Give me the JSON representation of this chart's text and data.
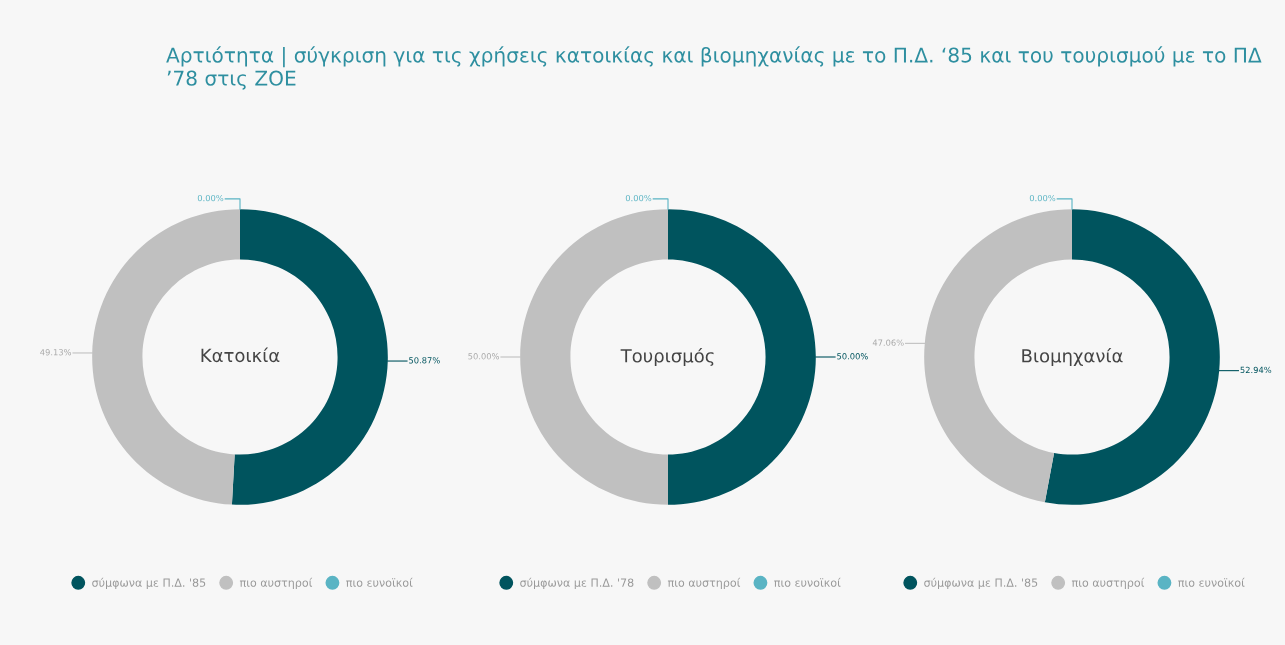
{
  "chart_data": [
    {
      "type": "donut",
      "title": "Αρτιότητα | σύγκριση για τις χρήσεις κατοικίας και βιομηχανίας με το Π.Δ. ‘85 και του τουρισμού με το ΠΔ ’78 στις ΖΟΕ",
      "annotations": [
        "Κατοικία"
      ],
      "categories": [
        "σύμφωνα με Π.Δ. '85",
        "πιο αυστηροί",
        "πιο ευνοϊκοί"
      ],
      "values": [
        50.87,
        49.13,
        0
      ],
      "value_labels": [
        "50.87%",
        "49.13%",
        "0.00%"
      ],
      "colors": [
        "#00545e",
        "#c0c0c0",
        "#5ab4c4"
      ],
      "legend": "bottom"
    },
    {
      "type": "donut",
      "annotations": [
        "Τουρισμός"
      ],
      "categories": [
        "σύμφωνα με Π.Δ. '78",
        "πιο αυστηροί",
        "πιο ευνοϊκοί"
      ],
      "values": [
        50.0,
        50.0,
        0
      ],
      "value_labels": [
        "50.00%",
        "50.00%",
        "0.00%"
      ],
      "colors": [
        "#00545e",
        "#c0c0c0",
        "#5ab4c4"
      ],
      "legend": "bottom"
    },
    {
      "type": "donut",
      "annotations": [
        "Βιομηχανία"
      ],
      "categories": [
        "σύμφωνα με Π.Δ. '85",
        "πιο αυστηροί",
        "πιο ευνοϊκοί"
      ],
      "values": [
        52.94,
        47.06,
        0
      ],
      "value_labels": [
        "52.94%",
        "47.06%",
        "0.00%"
      ],
      "colors": [
        "#00545e",
        "#c0c0c0",
        "#5ab4c4"
      ],
      "legend": "bottom"
    }
  ]
}
